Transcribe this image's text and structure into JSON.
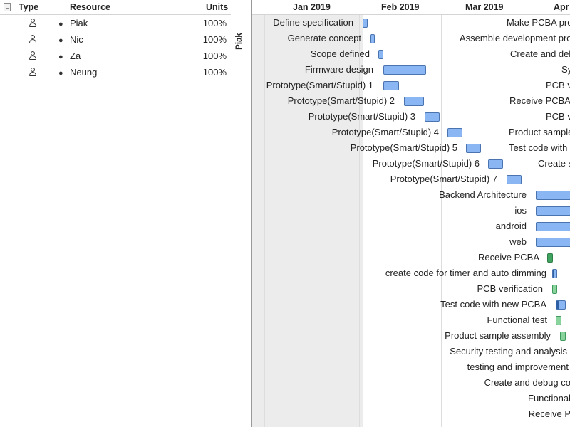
{
  "table": {
    "headers": {
      "type": "Type",
      "resource": "Resource",
      "units": "Units"
    },
    "rows": [
      {
        "name": "Piak",
        "units": "100%"
      },
      {
        "name": "Nic",
        "units": "100%"
      },
      {
        "name": "Za",
        "units": "100%"
      },
      {
        "name": "Neung",
        "units": "100%"
      }
    ]
  },
  "gantt": {
    "resource_label": "Piak",
    "months": [
      "Jan 2019",
      "Feb 2019",
      "Mar 2019",
      "Apr"
    ],
    "tasks": [
      "Define specification",
      "Generate concept",
      "Scope defined",
      "Firmware design",
      "Prototype(Smart/Stupid) 1",
      "Prototype(Smart/Stupid) 2",
      "Prototype(Smart/Stupid) 3",
      "Prototype(Smart/Stupid) 4",
      "Prototype(Smart/Stupid) 5",
      "Prototype(Smart/Stupid) 6",
      "Prototype(Smart/Stupid) 7",
      "Backend Architecture",
      "ios",
      "android",
      "web",
      "Receive PCBA",
      "create code for timer and auto dimming",
      "PCB verification",
      "Test code with new PCBA",
      "Functional test",
      "Product sample assembly",
      "Security testing and analysis",
      "testing and improvement",
      "Create and debug co",
      "Functional",
      "Receive P"
    ],
    "right_texts": [
      "Make PCBA pro",
      "Assemble development pro",
      "Create and deb",
      "Sy",
      "PCB v",
      "Receive PCBA",
      "PCB v",
      "Product sample",
      "Test code with",
      "Create s"
    ]
  },
  "colors": {
    "bar_blue": "#8ab6f4",
    "bar_green": "#88d49c",
    "nonwork_shade": "#ececec"
  }
}
